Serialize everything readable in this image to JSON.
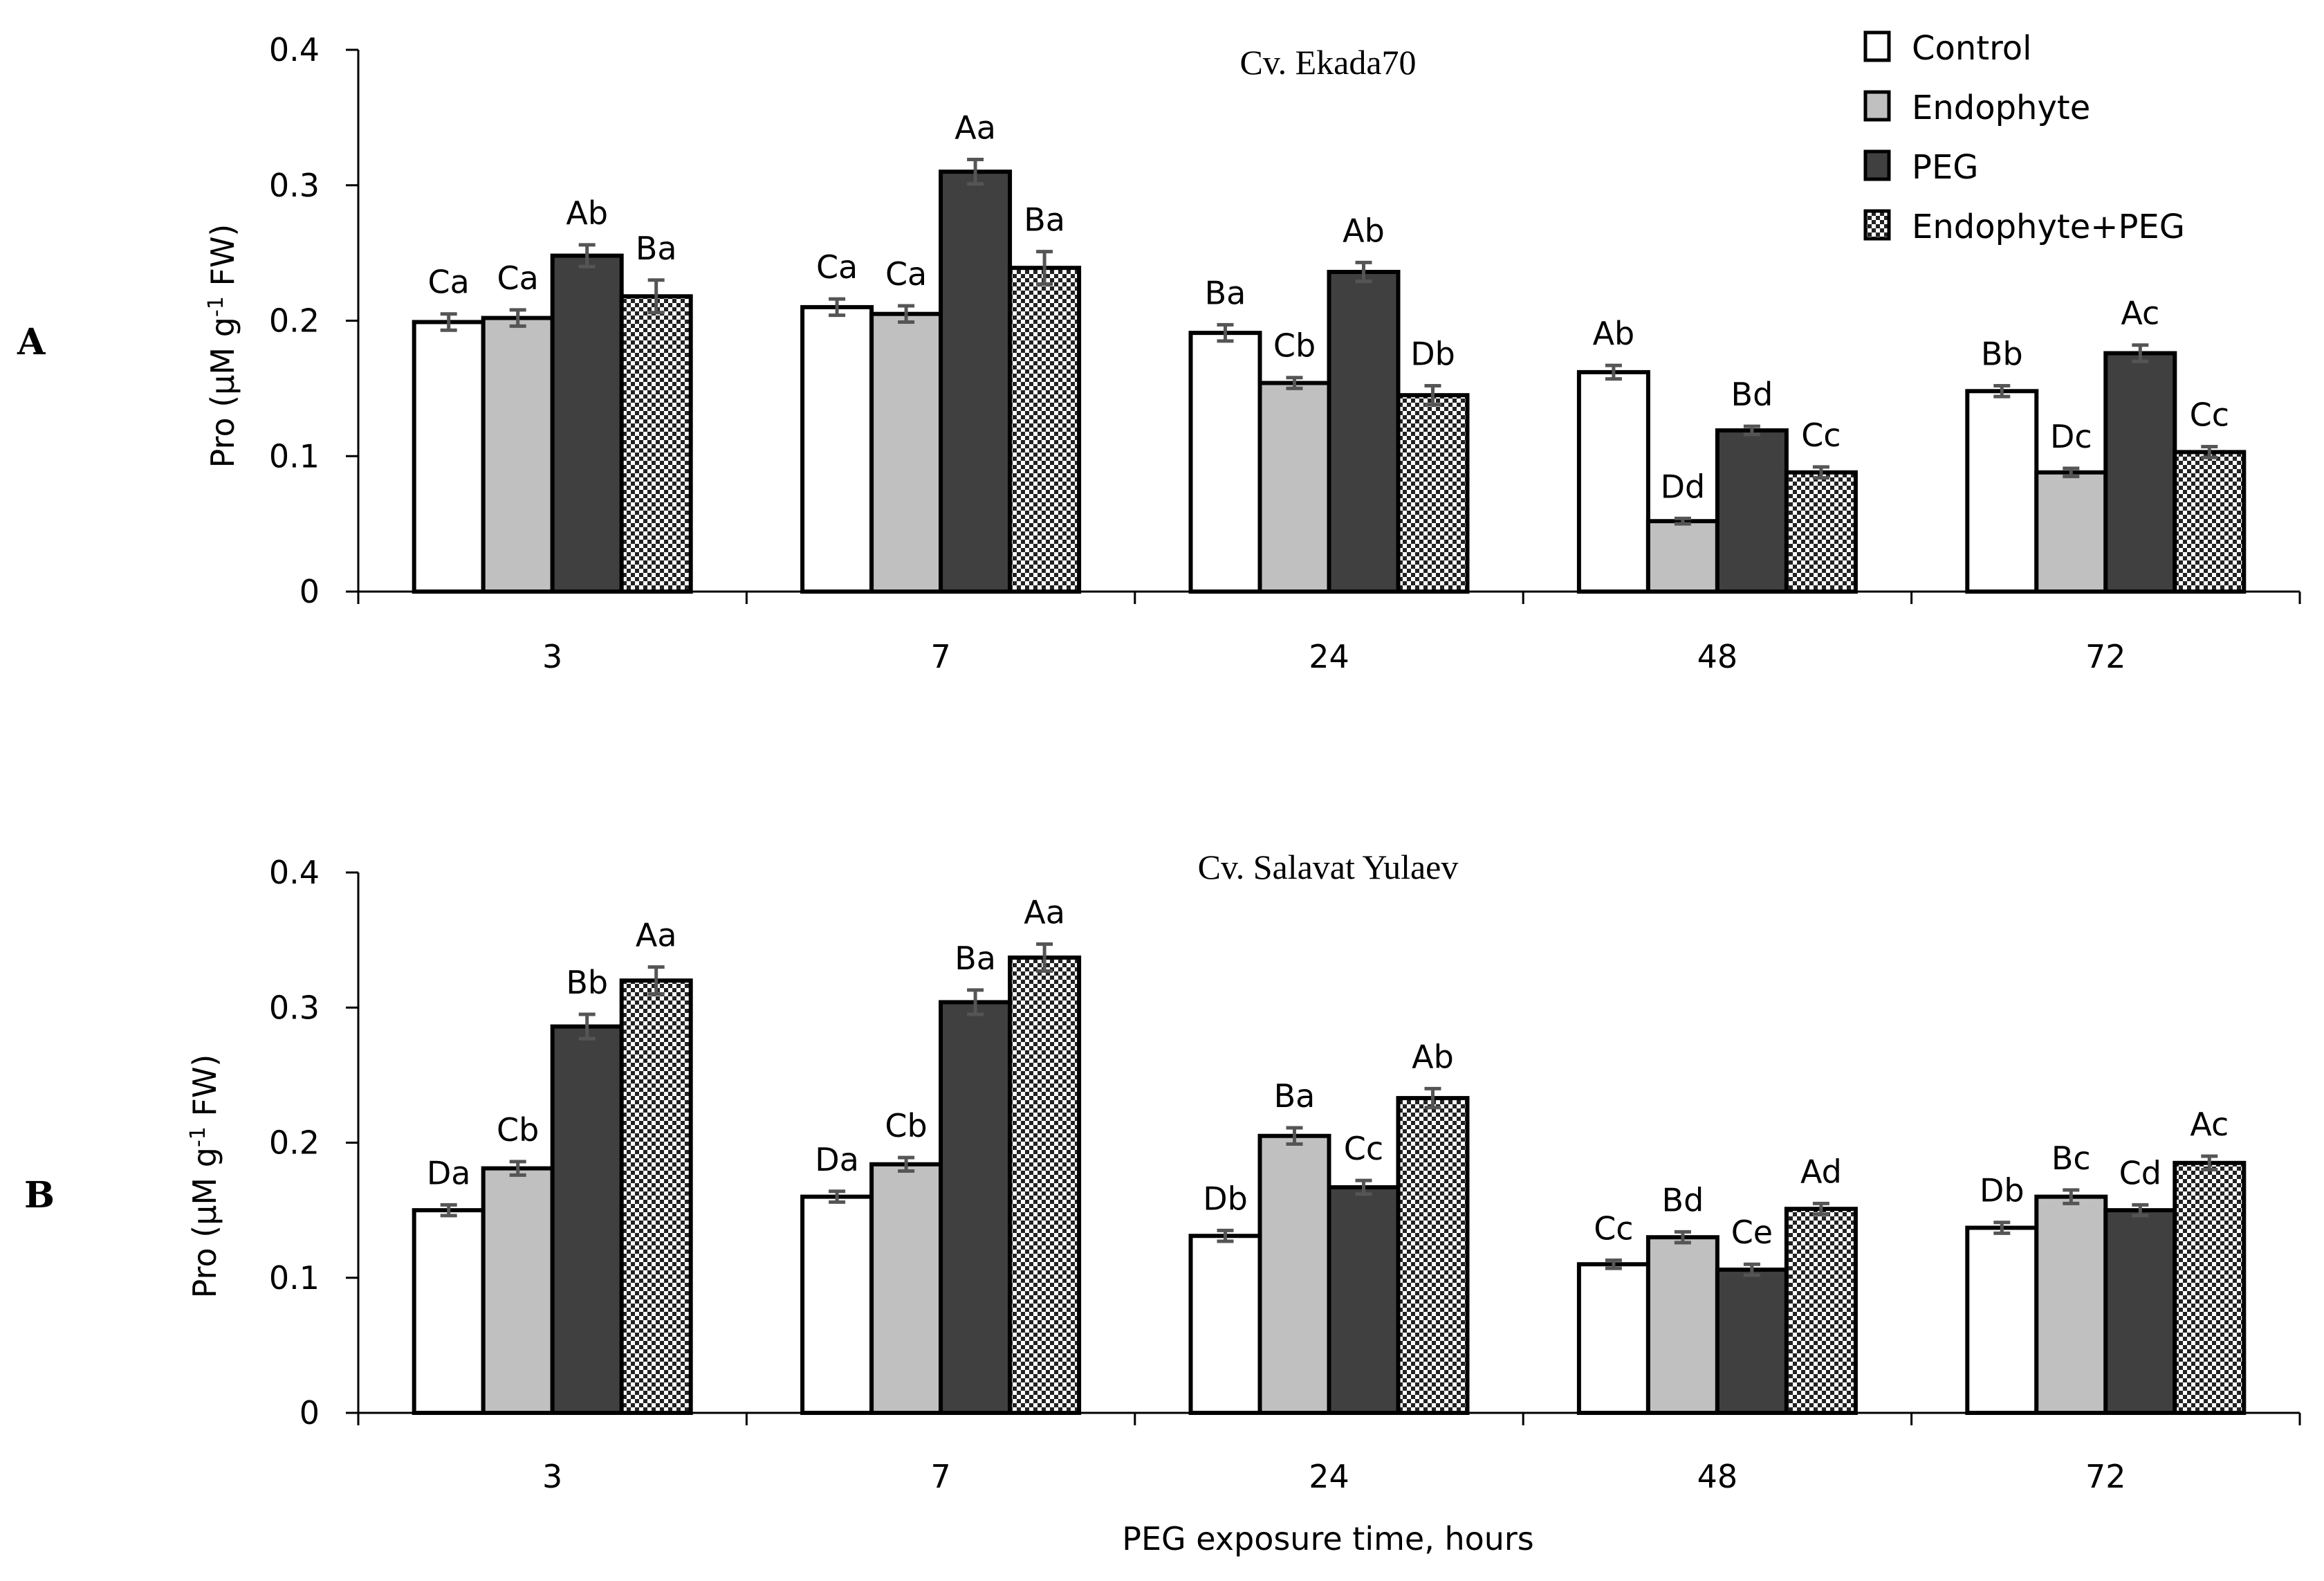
{
  "series_styles": [
    {
      "name": "Control",
      "fill": "#ffffff"
    },
    {
      "name": "Endophyte",
      "fill": "#c0c0c0"
    },
    {
      "name": "PEG",
      "fill": "#404040"
    },
    {
      "name": "Endophyte+PEG",
      "fill": "pattern"
    }
  ],
  "legend": {
    "items": [
      "Control",
      "Endophyte",
      "PEG",
      "Endophyte+PEG"
    ]
  },
  "chart_data": [
    {
      "type": "bar",
      "panel": "A",
      "title": "Cv. Ekada70",
      "ylabel_main": "Pro (µM g",
      "ylabel_sup": "-1",
      "ylabel_end": " FW)",
      "xlabel": "",
      "ylim": [
        0,
        0.4
      ],
      "yticks": [
        "0",
        "0.1",
        "0.2",
        "0.3",
        "0.4"
      ],
      "categories": [
        "3",
        "7",
        "24",
        "48",
        "72"
      ],
      "series": [
        {
          "name": "Control",
          "values": [
            0.199,
            0.21,
            0.191,
            0.162,
            0.148
          ],
          "errors": [
            0.006,
            0.006,
            0.006,
            0.005,
            0.004
          ],
          "labels": [
            "Ca",
            "Ca",
            "Ba",
            "Ab",
            "Bb"
          ]
        },
        {
          "name": "Endophyte",
          "values": [
            0.202,
            0.205,
            0.154,
            0.052,
            0.088
          ],
          "errors": [
            0.006,
            0.006,
            0.004,
            0.002,
            0.003
          ],
          "labels": [
            "Ca",
            "Ca",
            "Cb",
            "Dd",
            "Dc"
          ]
        },
        {
          "name": "PEG",
          "values": [
            0.248,
            0.31,
            0.236,
            0.119,
            0.176
          ],
          "errors": [
            0.008,
            0.009,
            0.007,
            0.003,
            0.006
          ],
          "labels": [
            "Ab",
            "Aa",
            "Ab",
            "Bd",
            "Ac"
          ]
        },
        {
          "name": "Endophyte+PEG",
          "values": [
            0.218,
            0.239,
            0.145,
            0.088,
            0.103
          ],
          "errors": [
            0.012,
            0.012,
            0.007,
            0.004,
            0.004
          ],
          "labels": [
            "Ba",
            "Ba",
            "Db",
            "Cc",
            "Cc"
          ]
        }
      ]
    },
    {
      "type": "bar",
      "panel": "B",
      "title": "Cv. Salavat Yulaev",
      "ylabel_main": "Pro (µM g",
      "ylabel_sup": "-1",
      "ylabel_end": " FW)",
      "xlabel": "PEG exposure time, hours",
      "ylim": [
        0,
        0.4
      ],
      "yticks": [
        "0",
        "0.1",
        "0.2",
        "0.3",
        "0.4"
      ],
      "categories": [
        "3",
        "7",
        "24",
        "48",
        "72"
      ],
      "series": [
        {
          "name": "Control",
          "values": [
            0.15,
            0.16,
            0.131,
            0.11,
            0.137
          ],
          "errors": [
            0.004,
            0.004,
            0.004,
            0.003,
            0.004
          ],
          "labels": [
            "Da",
            "Da",
            "Db",
            "Cc",
            "Db"
          ]
        },
        {
          "name": "Endophyte",
          "values": [
            0.181,
            0.184,
            0.205,
            0.13,
            0.16
          ],
          "errors": [
            0.005,
            0.005,
            0.006,
            0.004,
            0.005
          ],
          "labels": [
            "Cb",
            "Cb",
            "Ba",
            "Bd",
            "Bc"
          ]
        },
        {
          "name": "PEG",
          "values": [
            0.286,
            0.304,
            0.167,
            0.106,
            0.15
          ],
          "errors": [
            0.009,
            0.009,
            0.005,
            0.004,
            0.004
          ],
          "labels": [
            "Bb",
            "Ba",
            "Cc",
            "Ce",
            "Cd"
          ]
        },
        {
          "name": "Endophyte+PEG",
          "values": [
            0.32,
            0.337,
            0.233,
            0.151,
            0.185
          ],
          "errors": [
            0.01,
            0.01,
            0.007,
            0.004,
            0.005
          ],
          "labels": [
            "Aa",
            "Aa",
            "Ab",
            "Ad",
            "Ac"
          ]
        }
      ]
    }
  ]
}
